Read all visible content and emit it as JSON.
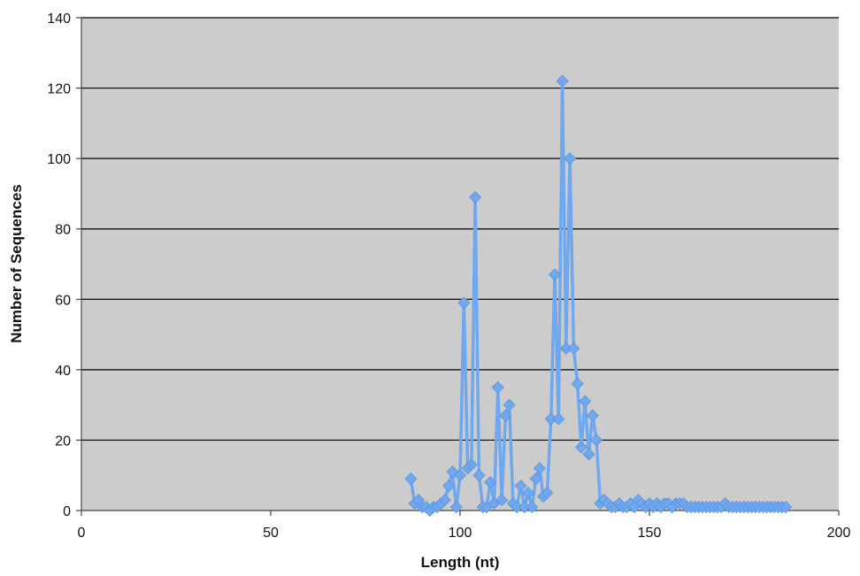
{
  "chart_data": {
    "type": "line",
    "title": "",
    "xlabel": "Length (nt)",
    "ylabel": "Number of Sequences",
    "xlim": [
      0,
      200
    ],
    "ylim": [
      0,
      140
    ],
    "xticks": [
      0,
      50,
      100,
      150,
      200
    ],
    "yticks": [
      0,
      20,
      40,
      60,
      80,
      100,
      120,
      140
    ],
    "grid": "horizontal",
    "legend": "none",
    "colors": {
      "series": "#6fa8ef",
      "marker": "#6fa8ef",
      "plot_bg": "#cccccc",
      "gridline": "#000000"
    },
    "series": [
      {
        "x": [
          87,
          88,
          89,
          90,
          91,
          92,
          93,
          94,
          95,
          96,
          97,
          98,
          99,
          100,
          101,
          102,
          103,
          104,
          105,
          106,
          107,
          108,
          109,
          110,
          111,
          112,
          113,
          114,
          115,
          116,
          117,
          118,
          119,
          120,
          121,
          122,
          123,
          124,
          125,
          126,
          127,
          128,
          129,
          130,
          131,
          132,
          133,
          134,
          135,
          136,
          137,
          138,
          139,
          140,
          141,
          142,
          143,
          144,
          145,
          146,
          147,
          148,
          149,
          150,
          151,
          152,
          153,
          154,
          155,
          156,
          157,
          158,
          159,
          160,
          161,
          162,
          163,
          164,
          165,
          166,
          167,
          168,
          169,
          170,
          171,
          172,
          173,
          174,
          175,
          176,
          177,
          178,
          179,
          180,
          181,
          182,
          183,
          184,
          185,
          186
        ],
        "y": [
          9,
          2,
          3,
          1,
          1,
          0,
          1,
          1,
          2,
          3,
          7,
          11,
          1,
          10,
          59,
          12,
          13,
          89,
          10,
          1,
          1,
          8,
          2,
          35,
          3,
          27,
          30,
          2,
          1,
          7,
          1,
          5,
          1,
          9,
          12,
          4,
          5,
          26,
          67,
          26,
          122,
          46,
          100,
          46,
          36,
          18,
          31,
          16,
          27,
          20,
          2,
          3,
          2,
          1,
          1,
          2,
          1,
          1,
          2,
          1,
          3,
          2,
          1,
          2,
          1,
          2,
          1,
          2,
          2,
          1,
          2,
          2,
          2,
          1,
          1,
          1,
          1,
          1,
          1,
          1,
          1,
          1,
          1,
          2,
          1,
          1,
          1,
          1,
          1,
          1,
          1,
          1,
          1,
          1,
          1,
          1,
          1,
          1,
          1,
          1
        ]
      }
    ]
  }
}
